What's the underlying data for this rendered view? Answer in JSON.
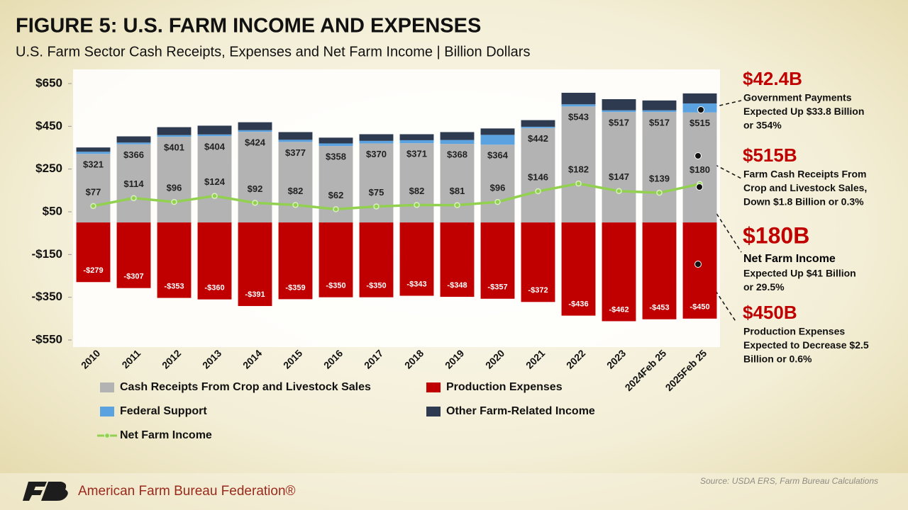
{
  "chart_data": {
    "type": "bar",
    "stacked": true,
    "title": "FIGURE 5: U.S. FARM INCOME AND EXPENSES",
    "subtitle": "U.S. Farm Sector Cash Receipts, Expenses and Net Farm Income | Billion Dollars",
    "categories": [
      "2010",
      "2011",
      "2012",
      "2013",
      "2014",
      "2015",
      "2016",
      "2017",
      "2018",
      "2019",
      "2020",
      "2021",
      "2022",
      "2023",
      "2024Feb 25",
      "2025Feb 25"
    ],
    "series": [
      {
        "name": "Cash Receipts From Crop and Livestock Sales",
        "color": "#b3b3b3",
        "values": [
          321,
          366,
          401,
          404,
          424,
          377,
          358,
          370,
          371,
          368,
          364,
          442,
          543,
          517,
          517,
          515
        ],
        "value_labels": [
          "$321",
          "$366",
          "$401",
          "$404",
          "$424",
          "$377",
          "$358",
          "$370",
          "$371",
          "$368",
          "$364",
          "$442",
          "$543",
          "$517",
          "$517",
          "$515"
        ]
      },
      {
        "name": "Production Expenses",
        "color": "#c00000",
        "values": [
          -279,
          -307,
          -353,
          -360,
          -391,
          -359,
          -350,
          -350,
          -343,
          -348,
          -357,
          -372,
          -436,
          -462,
          -453,
          -450
        ],
        "value_labels": [
          "-$279",
          "-$307",
          "-$353",
          "-$360",
          "-$391",
          "-$359",
          "-$350",
          "-$350",
          "-$343",
          "-$348",
          "-$357",
          "-$372",
          "-$436",
          "-$462",
          "-$453",
          "-$450"
        ]
      },
      {
        "name": "Federal Support",
        "color": "#5ba3e0",
        "values": [
          10,
          8,
          8,
          8,
          8,
          10,
          12,
          12,
          14,
          18,
          46,
          6,
          10,
          8,
          8,
          42
        ]
      },
      {
        "name": "Other Farm-Related Income",
        "color": "#2e3a4f",
        "values": [
          20,
          29,
          37,
          41,
          37,
          36,
          27,
          31,
          28,
          37,
          30,
          31,
          54,
          52,
          46,
          47
        ]
      },
      {
        "name": "Net Farm Income",
        "color": "#92d050",
        "type": "line",
        "values": [
          77,
          114,
          96,
          124,
          92,
          82,
          62,
          75,
          82,
          81,
          96,
          146,
          182,
          147,
          139,
          180
        ],
        "value_labels": [
          "$77",
          "$114",
          "$96",
          "$124",
          "$92",
          "$82",
          "$62",
          "$75",
          "$82",
          "$81",
          "$96",
          "$146",
          "$182",
          "$147",
          "$139",
          "$180"
        ]
      }
    ],
    "ylim": [
      -550,
      650
    ],
    "yticks": [
      {
        "value": -550,
        "label": "-$550"
      },
      {
        "value": -350,
        "label": "-$350"
      },
      {
        "value": -150,
        "label": "-$150"
      },
      {
        "value": 50,
        "label": "$50"
      },
      {
        "value": 250,
        "label": "$250"
      },
      {
        "value": 450,
        "label": "$450"
      },
      {
        "value": 650,
        "label": "$650"
      }
    ],
    "legend": "bottom"
  },
  "annotations": [
    {
      "headline": "$42.4B",
      "lines": [
        "Government Payments",
        "Expected Up $33.8 Billion",
        "or 354%"
      ]
    },
    {
      "headline": "$515B",
      "lines": [
        "Farm Cash Receipts From",
        "Crop and Livestock Sales,",
        "Down $1.8 Billion or 0.3%"
      ]
    },
    {
      "headline": "$180B",
      "subhead": "Net Farm Income",
      "lines": [
        "Expected Up $41 Billion",
        "or 29.5%"
      ]
    },
    {
      "headline": "$450B",
      "lines": [
        "Production Expenses",
        "Expected to Decrease $2.5",
        "Billion or 0.6%"
      ]
    }
  ],
  "source": "Source: USDA ERS, Farm Bureau Calculations",
  "footer": "American Farm Bureau Federation®"
}
